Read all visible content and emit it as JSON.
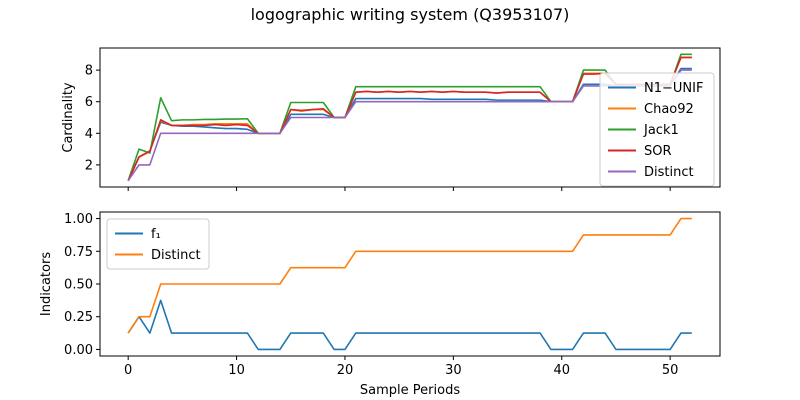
{
  "figure": {
    "title": "logographic writing system (Q3953107)"
  },
  "colors": {
    "blue": "#1f77b4",
    "orange": "#ff7f0e",
    "green": "#2ca02c",
    "red": "#d62728",
    "purple": "#9467bd"
  },
  "chart_data": [
    {
      "type": "line",
      "ylabel": "Cardinality",
      "xlabel": "",
      "xlim": [
        -2.6,
        54.6
      ],
      "ylim": [
        0.6,
        9.4
      ],
      "xticks": [
        0,
        10,
        20,
        30,
        40,
        50
      ],
      "yticks": [
        2,
        4,
        6,
        8
      ],
      "x": [
        0,
        1,
        2,
        3,
        4,
        5,
        6,
        7,
        8,
        9,
        10,
        11,
        12,
        13,
        14,
        15,
        16,
        17,
        18,
        19,
        20,
        21,
        22,
        23,
        24,
        25,
        26,
        27,
        28,
        29,
        30,
        31,
        32,
        33,
        34,
        35,
        36,
        37,
        38,
        39,
        40,
        41,
        42,
        43,
        44,
        45,
        46,
        47,
        48,
        49,
        50,
        51,
        52
      ],
      "legend_position": "right",
      "series": [
        {
          "name": "N1−UNIF",
          "color": "#1f77b4",
          "values": [
            1,
            2.5,
            2.9,
            4.7,
            4.5,
            4.45,
            4.45,
            4.4,
            4.35,
            4.3,
            4.3,
            4.25,
            4,
            4,
            4,
            5.2,
            5.2,
            5.2,
            5.2,
            5,
            5,
            6.2,
            6.2,
            6.2,
            6.2,
            6.2,
            6.2,
            6.2,
            6.15,
            6.15,
            6.15,
            6.15,
            6.15,
            6.15,
            6.1,
            6.1,
            6.1,
            6.1,
            6.1,
            6,
            6,
            6,
            7.1,
            7.1,
            7.1,
            7,
            7,
            7,
            7,
            7,
            7,
            8.1,
            8.1
          ]
        },
        {
          "name": "Chao92",
          "color": "#ff7f0e",
          "values": [
            1,
            2.5,
            2.9,
            4.8,
            4.5,
            4.5,
            4.55,
            4.55,
            4.6,
            4.6,
            4.6,
            4.6,
            4,
            4,
            4,
            5.5,
            5.4,
            5.5,
            5.5,
            5,
            5,
            6.6,
            6.65,
            6.6,
            6.65,
            6.6,
            6.65,
            6.6,
            6.65,
            6.6,
            6.65,
            6.6,
            6.6,
            6.6,
            6.55,
            6.6,
            6.6,
            6.6,
            6.6,
            6,
            6,
            6,
            7.8,
            7.8,
            7.8,
            7.1,
            7.1,
            7.1,
            7.1,
            7.1,
            7.1,
            8.8,
            8.8
          ]
        },
        {
          "name": "Jack1",
          "color": "#2ca02c",
          "values": [
            1,
            3,
            2.75,
            6.25,
            4.8,
            4.85,
            4.85,
            4.88,
            4.88,
            4.9,
            4.9,
            4.92,
            4,
            4,
            4,
            5.95,
            5.95,
            5.95,
            5.95,
            5,
            5,
            6.95,
            6.95,
            6.95,
            6.95,
            6.95,
            6.95,
            6.95,
            6.95,
            6.95,
            6.95,
            6.95,
            6.95,
            6.95,
            6.95,
            6.95,
            6.95,
            6.95,
            6.95,
            6,
            6,
            6,
            8,
            8,
            8,
            7.05,
            7.05,
            7.05,
            7.05,
            7.05,
            7.05,
            9,
            9
          ]
        },
        {
          "name": "SOR",
          "color": "#d62728",
          "values": [
            1,
            2.5,
            2.85,
            4.85,
            4.5,
            4.5,
            4.5,
            4.5,
            4.55,
            4.5,
            4.55,
            4.5,
            4,
            4,
            4,
            5.5,
            5.45,
            5.5,
            5.55,
            5,
            5,
            6.6,
            6.65,
            6.6,
            6.65,
            6.6,
            6.65,
            6.6,
            6.65,
            6.6,
            6.65,
            6.6,
            6.6,
            6.6,
            6.55,
            6.6,
            6.6,
            6.6,
            6.6,
            6,
            6,
            6,
            7.75,
            7.75,
            7.8,
            7.1,
            7.1,
            7.1,
            7.1,
            7.1,
            7.1,
            8.8,
            8.8
          ]
        },
        {
          "name": "Distinct",
          "color": "#9467bd",
          "values": [
            1,
            2,
            2,
            4,
            4,
            4,
            4,
            4,
            4,
            4,
            4,
            4,
            4,
            4,
            4,
            5,
            5,
            5,
            5,
            5,
            5,
            6,
            6,
            6,
            6,
            6,
            6,
            6,
            6,
            6,
            6,
            6,
            6,
            6,
            6,
            6,
            6,
            6,
            6,
            6,
            6,
            6,
            7,
            7,
            7,
            7,
            7,
            7,
            7,
            7,
            7,
            8,
            8
          ]
        }
      ]
    },
    {
      "type": "line",
      "ylabel": "Indicators",
      "xlabel": "Sample Periods",
      "xlim": [
        -2.6,
        54.6
      ],
      "ylim": [
        -0.05,
        1.05
      ],
      "xticks": [
        0,
        10,
        20,
        30,
        40,
        50
      ],
      "yticks": [
        0.0,
        0.25,
        0.5,
        0.75,
        1.0
      ],
      "x": [
        0,
        1,
        2,
        3,
        4,
        5,
        6,
        7,
        8,
        9,
        10,
        11,
        12,
        13,
        14,
        15,
        16,
        17,
        18,
        19,
        20,
        21,
        22,
        23,
        24,
        25,
        26,
        27,
        28,
        29,
        30,
        31,
        32,
        33,
        34,
        35,
        36,
        37,
        38,
        39,
        40,
        41,
        42,
        43,
        44,
        45,
        46,
        47,
        48,
        49,
        50,
        51,
        52
      ],
      "legend_position": "upper left",
      "series": [
        {
          "name": "f₁",
          "color": "#1f77b4",
          "values": [
            0.125,
            0.25,
            0.125,
            0.375,
            0.125,
            0.125,
            0.125,
            0.125,
            0.125,
            0.125,
            0.125,
            0.125,
            0,
            0,
            0,
            0.125,
            0.125,
            0.125,
            0.125,
            0,
            0,
            0.125,
            0.125,
            0.125,
            0.125,
            0.125,
            0.125,
            0.125,
            0.125,
            0.125,
            0.125,
            0.125,
            0.125,
            0.125,
            0.125,
            0.125,
            0.125,
            0.125,
            0.125,
            0,
            0,
            0,
            0.125,
            0.125,
            0.125,
            0,
            0,
            0,
            0,
            0,
            0,
            0.125,
            0.125
          ]
        },
        {
          "name": "Distinct",
          "color": "#ff7f0e",
          "values": [
            0.125,
            0.25,
            0.25,
            0.5,
            0.5,
            0.5,
            0.5,
            0.5,
            0.5,
            0.5,
            0.5,
            0.5,
            0.5,
            0.5,
            0.5,
            0.625,
            0.625,
            0.625,
            0.625,
            0.625,
            0.625,
            0.75,
            0.75,
            0.75,
            0.75,
            0.75,
            0.75,
            0.75,
            0.75,
            0.75,
            0.75,
            0.75,
            0.75,
            0.75,
            0.75,
            0.75,
            0.75,
            0.75,
            0.75,
            0.75,
            0.75,
            0.75,
            0.875,
            0.875,
            0.875,
            0.875,
            0.875,
            0.875,
            0.875,
            0.875,
            0.875,
            1.0,
            1.0
          ]
        }
      ]
    }
  ]
}
